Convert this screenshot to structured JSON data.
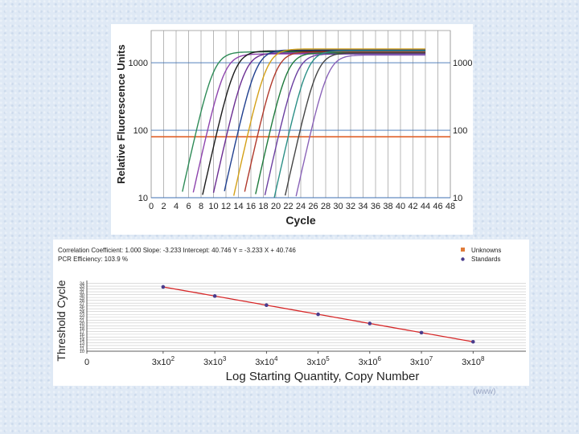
{
  "chart_data": [
    {
      "type": "line",
      "ylabel": "Relative Fluorescence Units",
      "xlabel": "Cycle",
      "xlim": [
        0,
        48
      ],
      "ylim": [
        10,
        3000
      ],
      "yscale": "log",
      "x_ticks": [
        "0",
        "2",
        "4",
        "6",
        "8",
        "10",
        "12",
        "14",
        "16",
        "18",
        "20",
        "22",
        "24",
        "26",
        "28",
        "30",
        "32",
        "34",
        "36",
        "38",
        "40",
        "42",
        "44",
        "46",
        "48"
      ],
      "y_ticks_left": [
        "1000",
        "100",
        "10"
      ],
      "y_ticks_right": [
        "1000",
        "100",
        "10"
      ],
      "threshold": 80,
      "grid": true,
      "series": [
        {
          "color": "#2e8b57",
          "midpoint": 10.0,
          "plateau": 1450
        },
        {
          "color": "#8e44ad",
          "midpoint": 11.7,
          "plateau": 1350
        },
        {
          "color": "#1a1a1a",
          "midpoint": 13.4,
          "plateau": 1500
        },
        {
          "color": "#6a2c91",
          "midpoint": 15.0,
          "plateau": 1400
        },
        {
          "color": "#1f3f8f",
          "midpoint": 16.8,
          "plateau": 1550
        },
        {
          "color": "#d4a017",
          "midpoint": 18.5,
          "plateau": 1600
        },
        {
          "color": "#b0392b",
          "midpoint": 20.0,
          "plateau": 1450
        },
        {
          "color": "#1e7a3c",
          "midpoint": 21.8,
          "plateau": 1400
        },
        {
          "color": "#6b3fa0",
          "midpoint": 23.3,
          "plateau": 1350
        },
        {
          "color": "#2b8f86",
          "midpoint": 25.0,
          "plateau": 1500
        },
        {
          "color": "#444444",
          "midpoint": 26.6,
          "plateau": 1400
        },
        {
          "color": "#8a63b8",
          "midpoint": 28.3,
          "plateau": 1300
        }
      ]
    },
    {
      "type": "scatter",
      "ylabel": "Threshold Cycle",
      "xlabel": "Log Starting Quantity, Copy Number",
      "ylim": [
        10,
        35
      ],
      "x_tick_labels": [
        {
          "base": "0",
          "exp": ""
        },
        {
          "base": "3x10",
          "exp": "2"
        },
        {
          "base": "3x10",
          "exp": "3"
        },
        {
          "base": "3x10",
          "exp": "4"
        },
        {
          "base": "3x10",
          "exp": "5"
        },
        {
          "base": "3x10",
          "exp": "6"
        },
        {
          "base": "3x10",
          "exp": "7"
        },
        {
          "base": "3x10",
          "exp": "8"
        }
      ],
      "y_tick_labels": [
        "10",
        "11",
        "12",
        "13",
        "14",
        "15",
        "16",
        "17",
        "18",
        "19",
        "20",
        "21",
        "22",
        "23",
        "24",
        "25",
        "26",
        "27",
        "28",
        "29",
        "30",
        "31",
        "32",
        "33",
        "34"
      ],
      "header_line1": "Correlation Coefficient: 1.000   Slope: -3.233   Intercept: 40.746   Y = -3.233 X + 40.746",
      "header_line2": "PCR Efficiency: 103.9 %",
      "legend": [
        "Unknowns",
        "Standards"
      ],
      "legend_colors": [
        "#e07b39",
        "#4a3c8c"
      ],
      "regression": {
        "slope": -3.233,
        "intercept": 40.746,
        "color": "#d62728"
      },
      "standards_x": [
        2.477,
        3.477,
        4.477,
        5.477,
        6.477,
        7.477,
        8.477
      ],
      "standards_y": [
        32.74,
        29.51,
        26.27,
        23.04,
        19.81,
        16.57,
        13.34
      ]
    }
  ],
  "footer_text": "(www)"
}
